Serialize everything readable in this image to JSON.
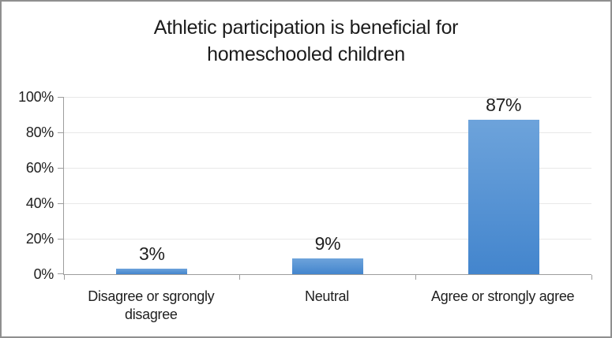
{
  "window": {
    "background": "#ffffff",
    "border_color": "#8f8f8f"
  },
  "chart_data": {
    "type": "bar",
    "title": "Athletic participation is beneficial for homeschooled children",
    "title_lines": [
      "Athletic participation is beneficial for",
      "homeschooled children"
    ],
    "categories": [
      "Disagree or sgrongly disagree",
      "Neutral",
      "Agree or strongly agree"
    ],
    "values": [
      3,
      9,
      87
    ],
    "data_labels": [
      "3%",
      "9%",
      "87%"
    ],
    "xlabel": "",
    "ylabel": "",
    "ylim": [
      0,
      100
    ],
    "ytick_values": [
      0,
      20,
      40,
      60,
      80,
      100
    ],
    "ytick_labels": [
      "0%",
      "20%",
      "40%",
      "60%",
      "80%",
      "100%"
    ],
    "grid": true,
    "legend": false,
    "colors": {
      "bar_gradient_top": "#6da3db",
      "bar_gradient_bottom": "#4385cd",
      "gridline": "#e8e8e8",
      "axis": "#9d9d9d",
      "text": "#1f1f1f"
    }
  }
}
